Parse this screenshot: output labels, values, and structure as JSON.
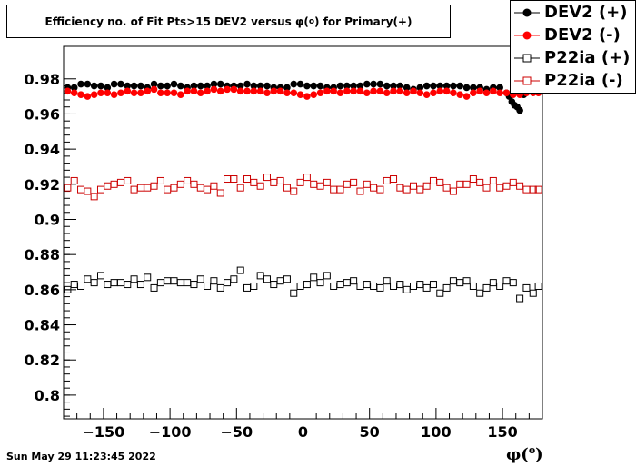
{
  "chart_data": {
    "type": "scatter",
    "title": "Efficiency no. of Fit Pts>15 DEV2 versus φ(°) for Primary(+)",
    "title_main": "Efficiency no. of Fit Pts>15 DEV2 versus φ(",
    "title_sup": "o",
    "title_tail": ") for Primary(+)",
    "xlabel": "φ(°)",
    "xlabel_main": "φ(",
    "xlabel_sup": "o",
    "xlabel_tail": ")",
    "ylabel": "",
    "xlim": [
      -180,
      180
    ],
    "ylim": [
      0.7865,
      0.9985
    ],
    "xticks": [
      -150,
      -100,
      -50,
      0,
      50,
      100,
      150
    ],
    "xtick_labels": [
      "−150",
      "−100",
      "−50",
      "0",
      "50",
      "100",
      "150"
    ],
    "yticks": [
      0.8,
      0.82,
      0.84,
      0.86,
      0.88,
      0.9,
      0.92,
      0.94,
      0.96,
      0.98
    ],
    "ytick_labels": [
      "0.8",
      "0.82",
      "0.84",
      "0.86",
      "0.88",
      "0.9",
      "0.92",
      "0.94",
      "0.96",
      "0.98"
    ],
    "grid": false,
    "legend_position": "top-right",
    "series": [
      {
        "name": "DEV2 (+)",
        "marker": "filled-circle",
        "color": "#000000",
        "x": [
          -177,
          -172,
          -167,
          -162,
          -157,
          -152,
          -147,
          -142,
          -137,
          -132,
          -127,
          -122,
          -117,
          -112,
          -107,
          -102,
          -97,
          -92,
          -87,
          -82,
          -77,
          -72,
          -67,
          -62,
          -57,
          -52,
          -47,
          -42,
          -37,
          -32,
          -27,
          -22,
          -17,
          -12,
          -7,
          -2,
          3,
          8,
          13,
          18,
          23,
          28,
          33,
          38,
          43,
          48,
          53,
          58,
          63,
          68,
          73,
          78,
          83,
          88,
          93,
          98,
          103,
          108,
          113,
          118,
          123,
          128,
          133,
          138,
          143,
          148,
          153,
          155,
          157,
          159,
          161,
          163,
          166,
          171,
          176
        ],
        "y": [
          0.975,
          0.975,
          0.977,
          0.977,
          0.976,
          0.976,
          0.975,
          0.977,
          0.977,
          0.976,
          0.976,
          0.976,
          0.975,
          0.977,
          0.976,
          0.976,
          0.977,
          0.976,
          0.975,
          0.976,
          0.976,
          0.976,
          0.977,
          0.977,
          0.976,
          0.976,
          0.976,
          0.977,
          0.976,
          0.976,
          0.976,
          0.975,
          0.975,
          0.975,
          0.977,
          0.977,
          0.976,
          0.976,
          0.976,
          0.975,
          0.975,
          0.976,
          0.976,
          0.976,
          0.976,
          0.977,
          0.977,
          0.977,
          0.976,
          0.976,
          0.976,
          0.975,
          0.974,
          0.975,
          0.976,
          0.976,
          0.976,
          0.976,
          0.976,
          0.976,
          0.975,
          0.975,
          0.975,
          0.974,
          0.975,
          0.975,
          0.972,
          0.97,
          0.967,
          0.965,
          0.964,
          0.962,
          0.971,
          0.973,
          0.973
        ]
      },
      {
        "name": "DEV2 (-)",
        "marker": "filled-circle",
        "color": "#ff0000",
        "x": [
          -177,
          -172,
          -167,
          -162,
          -157,
          -152,
          -147,
          -142,
          -137,
          -132,
          -127,
          -122,
          -117,
          -112,
          -107,
          -102,
          -97,
          -92,
          -87,
          -82,
          -77,
          -72,
          -67,
          -62,
          -57,
          -52,
          -47,
          -42,
          -37,
          -32,
          -27,
          -22,
          -17,
          -12,
          -7,
          -2,
          3,
          8,
          13,
          18,
          23,
          28,
          33,
          38,
          43,
          48,
          53,
          58,
          63,
          68,
          73,
          78,
          83,
          88,
          93,
          98,
          103,
          108,
          113,
          118,
          123,
          128,
          133,
          138,
          143,
          148,
          153,
          158,
          163,
          168,
          173,
          177
        ],
        "y": [
          0.973,
          0.972,
          0.971,
          0.97,
          0.971,
          0.972,
          0.972,
          0.971,
          0.972,
          0.973,
          0.972,
          0.972,
          0.973,
          0.974,
          0.972,
          0.972,
          0.972,
          0.971,
          0.973,
          0.973,
          0.972,
          0.973,
          0.974,
          0.973,
          0.974,
          0.974,
          0.973,
          0.973,
          0.973,
          0.973,
          0.972,
          0.973,
          0.973,
          0.972,
          0.972,
          0.971,
          0.97,
          0.971,
          0.972,
          0.973,
          0.973,
          0.972,
          0.973,
          0.973,
          0.973,
          0.972,
          0.973,
          0.973,
          0.972,
          0.973,
          0.973,
          0.972,
          0.973,
          0.972,
          0.971,
          0.972,
          0.973,
          0.973,
          0.972,
          0.971,
          0.97,
          0.972,
          0.973,
          0.972,
          0.973,
          0.972,
          0.972,
          0.971,
          0.971,
          0.972,
          0.972,
          0.972
        ]
      },
      {
        "name": "P22ia (+)",
        "marker": "open-square",
        "color": "#000000",
        "x": [
          -177,
          -172,
          -167,
          -162,
          -157,
          -152,
          -147,
          -142,
          -137,
          -132,
          -127,
          -122,
          -117,
          -112,
          -107,
          -102,
          -97,
          -92,
          -87,
          -82,
          -77,
          -72,
          -67,
          -62,
          -57,
          -52,
          -47,
          -42,
          -37,
          -32,
          -27,
          -22,
          -17,
          -12,
          -7,
          -2,
          3,
          8,
          13,
          18,
          23,
          28,
          33,
          38,
          43,
          48,
          53,
          58,
          63,
          68,
          73,
          78,
          83,
          88,
          93,
          98,
          103,
          108,
          113,
          118,
          123,
          128,
          133,
          138,
          143,
          148,
          153,
          158,
          163,
          168,
          173,
          177
        ],
        "y": [
          0.86,
          0.863,
          0.862,
          0.866,
          0.864,
          0.868,
          0.863,
          0.864,
          0.864,
          0.863,
          0.866,
          0.863,
          0.867,
          0.861,
          0.864,
          0.865,
          0.865,
          0.864,
          0.864,
          0.863,
          0.866,
          0.862,
          0.865,
          0.861,
          0.864,
          0.866,
          0.871,
          0.861,
          0.862,
          0.868,
          0.866,
          0.863,
          0.865,
          0.866,
          0.858,
          0.862,
          0.863,
          0.867,
          0.864,
          0.868,
          0.862,
          0.863,
          0.864,
          0.865,
          0.862,
          0.863,
          0.862,
          0.861,
          0.865,
          0.862,
          0.863,
          0.86,
          0.862,
          0.863,
          0.861,
          0.863,
          0.858,
          0.861,
          0.865,
          0.864,
          0.865,
          0.862,
          0.858,
          0.861,
          0.864,
          0.862,
          0.865,
          0.864,
          0.855,
          0.861,
          0.858,
          0.862
        ]
      },
      {
        "name": "P22ia (-)",
        "marker": "open-square",
        "color": "#cc0000",
        "x": [
          -177,
          -172,
          -167,
          -162,
          -157,
          -152,
          -147,
          -142,
          -137,
          -132,
          -127,
          -122,
          -117,
          -112,
          -107,
          -102,
          -97,
          -92,
          -87,
          -82,
          -77,
          -72,
          -67,
          -62,
          -57,
          -52,
          -47,
          -42,
          -37,
          -32,
          -27,
          -22,
          -17,
          -12,
          -7,
          -2,
          3,
          8,
          13,
          18,
          23,
          28,
          33,
          38,
          43,
          48,
          53,
          58,
          63,
          68,
          73,
          78,
          83,
          88,
          93,
          98,
          103,
          108,
          113,
          118,
          123,
          128,
          133,
          138,
          143,
          148,
          153,
          158,
          163,
          168,
          173,
          177
        ],
        "y": [
          0.918,
          0.922,
          0.917,
          0.916,
          0.913,
          0.917,
          0.919,
          0.92,
          0.921,
          0.922,
          0.917,
          0.918,
          0.918,
          0.919,
          0.922,
          0.917,
          0.918,
          0.92,
          0.922,
          0.92,
          0.918,
          0.917,
          0.919,
          0.915,
          0.923,
          0.923,
          0.918,
          0.923,
          0.921,
          0.919,
          0.924,
          0.921,
          0.922,
          0.918,
          0.916,
          0.921,
          0.924,
          0.92,
          0.919,
          0.921,
          0.917,
          0.917,
          0.92,
          0.921,
          0.916,
          0.92,
          0.918,
          0.917,
          0.922,
          0.923,
          0.918,
          0.917,
          0.919,
          0.917,
          0.919,
          0.922,
          0.921,
          0.918,
          0.916,
          0.92,
          0.92,
          0.923,
          0.921,
          0.918,
          0.922,
          0.918,
          0.919,
          0.921,
          0.919,
          0.917,
          0.917,
          0.917
        ]
      }
    ]
  },
  "footer": {
    "timestamp": "Sun May 29 11:23:45 2022"
  }
}
